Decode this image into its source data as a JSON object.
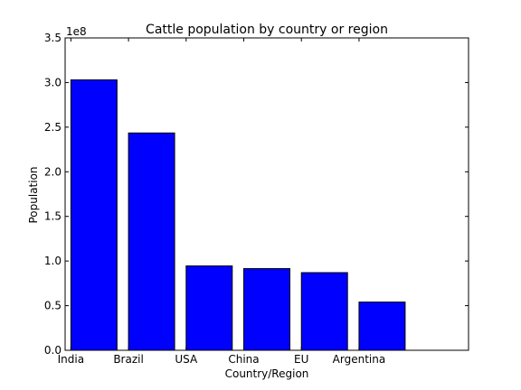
{
  "chart_data": {
    "type": "bar",
    "title": "Cattle population by country or region",
    "xlabel": "Country/Region",
    "ylabel": "Population",
    "categories": [
      "India",
      "Brazil",
      "USA",
      "China",
      "EU",
      "Argentina"
    ],
    "values": [
      303000000,
      243500000,
      94500000,
      91500000,
      87000000,
      54000000
    ],
    "ylim": [
      0,
      350000000
    ],
    "yticks": [
      0,
      50000000,
      100000000,
      150000000,
      200000000,
      250000000,
      300000000,
      350000000
    ],
    "ytick_labels": [
      "0.0",
      "0.5",
      "1.0",
      "1.5",
      "2.0",
      "2.5",
      "3.0",
      "3.5"
    ],
    "y_offset_label": "1e8",
    "bar_color": "#0000ff",
    "grid": false
  }
}
